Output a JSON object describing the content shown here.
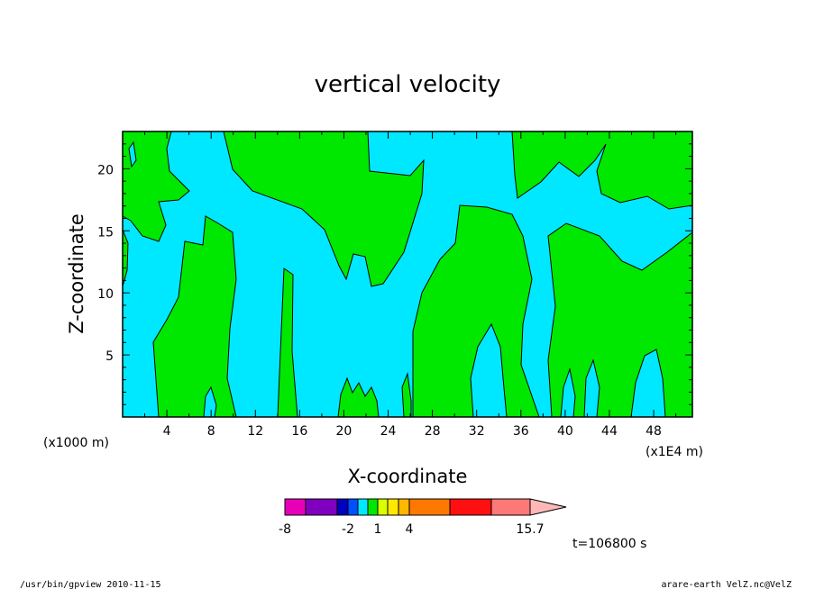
{
  "chart_data": {
    "type": "heatmap",
    "title": "vertical velocity",
    "xlabel": "X-coordinate",
    "ylabel": "Z-coordinate",
    "x_ticks": [
      "4",
      "8",
      "12",
      "16",
      "20",
      "24",
      "28",
      "32",
      "36",
      "40",
      "44",
      "48"
    ],
    "y_ticks": [
      "5",
      "10",
      "15",
      "20"
    ],
    "x_unit": "(x1000 m)",
    "x_unit2": "(x1E4 m)",
    "xlim": [
      0,
      51.5
    ],
    "ylim": [
      0,
      23
    ],
    "colors": {
      "negative": "#00e8ff",
      "positive": "#00e800"
    },
    "colorbar": {
      "labels": [
        "-8",
        "-2",
        "1",
        "4",
        "15.7"
      ],
      "colors": [
        "#e800b8",
        "#8000c0",
        "#0000c0",
        "#0050ff",
        "#00e8ff",
        "#00e800",
        "#d8ff00",
        "#ffe800",
        "#ffb800",
        "#ff7800",
        "#ff1010",
        "#ff7878",
        "#ffb8b8"
      ]
    },
    "time_label": "t=106800 s",
    "footer_left": "/usr/bin/gpview  2010-11-15",
    "footer_right": "arare-earth_VelZ.nc@VelZ"
  }
}
